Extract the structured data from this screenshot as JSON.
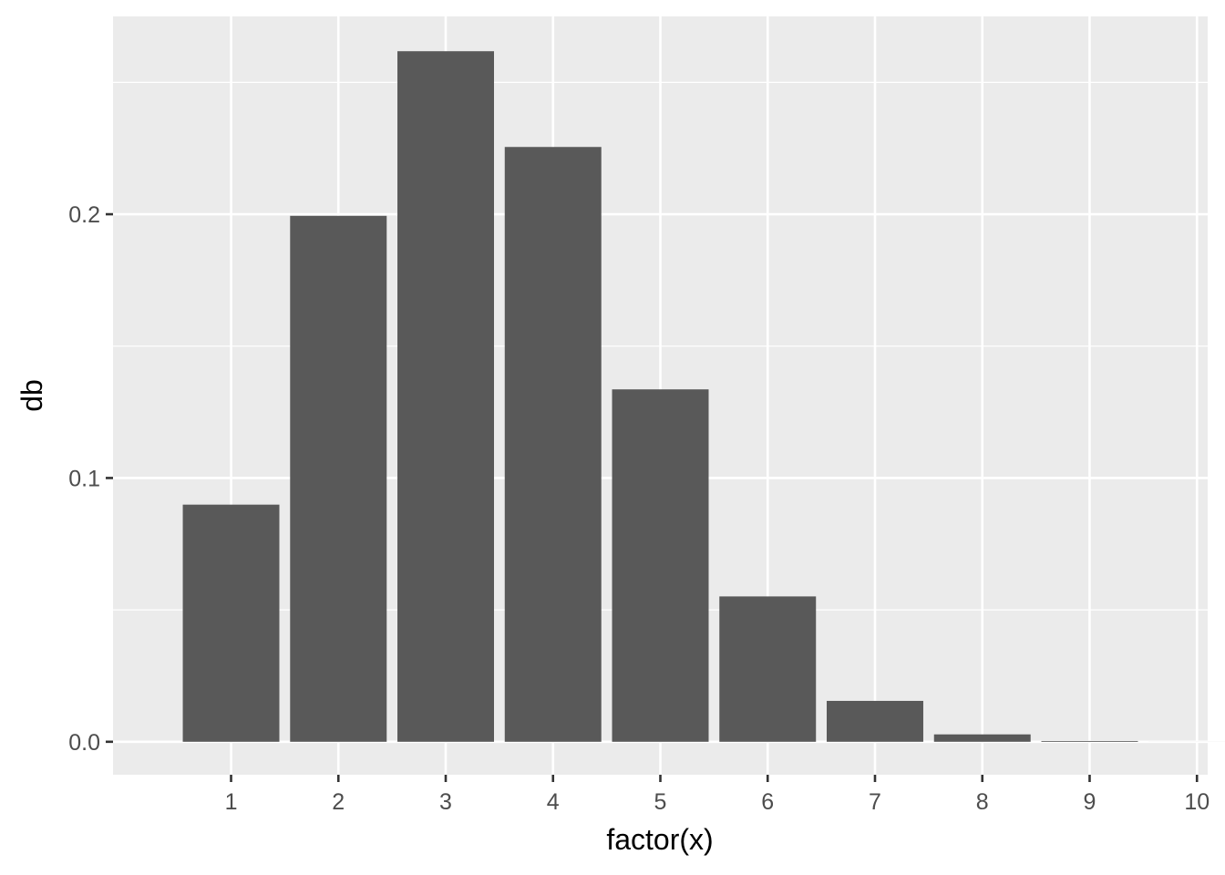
{
  "chart_data": {
    "type": "bar",
    "title": "",
    "xlabel": "factor(x)",
    "ylabel": "db",
    "categories": [
      "1",
      "2",
      "3",
      "4",
      "5",
      "6",
      "7",
      "8",
      "9",
      "10"
    ],
    "values": [
      0.0899,
      0.1994,
      0.2618,
      0.2255,
      0.1336,
      0.0551,
      0.0155,
      0.0028,
      0.0003,
      1e-05
    ],
    "ylim": [
      -0.0125,
      0.275
    ],
    "yticks": [
      0.0,
      0.1,
      0.2
    ],
    "ytick_labels": [
      "0.0",
      "0.1",
      "0.2"
    ],
    "grid": true,
    "legend": "none",
    "colors": {
      "bar": "#595959",
      "panel_background": "#ebebeb",
      "grid": "#ffffff",
      "text": "#4d4d4d"
    }
  }
}
